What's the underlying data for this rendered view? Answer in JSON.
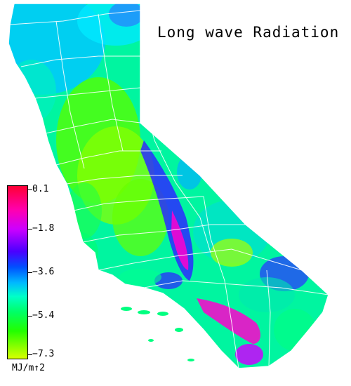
{
  "map": {
    "title": "Long wave Radiation",
    "region": "California"
  },
  "legend": {
    "ticks": [
      "0.1",
      "−1.8",
      "−3.6",
      "−5.4",
      "−7.3"
    ],
    "unit": "MJ/m↑2",
    "colors": [
      "#ff0033",
      "#ff00b0",
      "#cc00ff",
      "#4a00ff",
      "#0050ff",
      "#00b8ff",
      "#00ffc8",
      "#00ff66",
      "#22ff00",
      "#d8ff00"
    ]
  }
}
